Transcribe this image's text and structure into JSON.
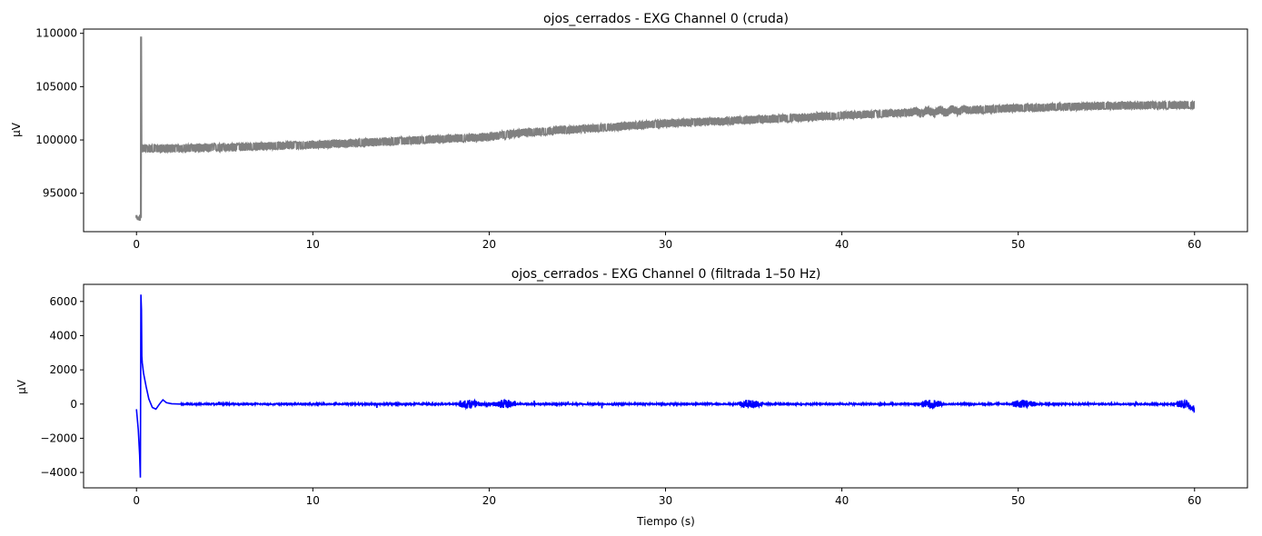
{
  "chart_data": [
    {
      "type": "line",
      "title": "ojos_cerrados -  EXG Channel 0 (cruda)",
      "xlabel": "",
      "ylabel": "µV",
      "xlim": [
        -3,
        63
      ],
      "ylim": [
        91400,
        110400
      ],
      "x_ticks": [
        0,
        10,
        20,
        30,
        40,
        50,
        60
      ],
      "x_tick_labels": [
        "0",
        "10",
        "20",
        "30",
        "40",
        "50",
        "60"
      ],
      "y_ticks": [
        95000,
        100000,
        105000,
        110000
      ],
      "y_tick_labels": [
        "95000",
        "100000",
        "105000",
        "110000"
      ],
      "grid": false,
      "series_color": "#808080",
      "band_halfwidth": 380,
      "spike": {
        "x_start": 0.0,
        "x_end": 0.28,
        "y_low": 92700,
        "y_high": 109700
      },
      "trend": {
        "x": [
          0.3,
          2,
          5,
          10,
          15,
          20,
          22,
          25,
          30,
          35,
          40,
          45,
          50,
          55,
          60
        ],
        "y": [
          99200,
          99200,
          99300,
          99550,
          99900,
          100300,
          100700,
          101000,
          101550,
          101900,
          102300,
          102650,
          103000,
          103200,
          103300
        ]
      }
    },
    {
      "type": "line",
      "title": "ojos_cerrados -  EXG Channel 0 (filtrada 1–50 Hz)",
      "xlabel": "Tiempo (s)",
      "ylabel": "µV",
      "xlim": [
        -3,
        63
      ],
      "ylim": [
        -4900,
        7000
      ],
      "x_ticks": [
        0,
        10,
        20,
        30,
        40,
        50,
        60
      ],
      "x_tick_labels": [
        "0",
        "10",
        "20",
        "30",
        "40",
        "50",
        "60"
      ],
      "y_ticks": [
        -4000,
        -2000,
        0,
        2000,
        4000,
        6000
      ],
      "y_tick_labels": [
        "−4000",
        "−2000",
        "0",
        "2000",
        "4000",
        "6000"
      ],
      "grid": false,
      "series_color": "#0000ff",
      "transient": {
        "x": [
          0,
          0.1,
          0.18,
          0.22,
          0.25,
          0.28,
          0.3,
          0.33,
          0.4,
          0.55,
          0.7,
          0.9,
          1.1,
          1.3,
          1.5,
          1.7,
          2.0,
          2.5
        ],
        "y": [
          -300,
          -1500,
          -3000,
          -4300,
          6400,
          5500,
          2800,
          2400,
          1800,
          1000,
          300,
          -200,
          -300,
          0,
          250,
          80,
          20,
          0
        ]
      },
      "burst_windows": [
        [
          18.3,
          21.5
        ],
        [
          34.2,
          35.6
        ],
        [
          44.5,
          45.8
        ],
        [
          49.7,
          51.2
        ],
        [
          59.0,
          60.0
        ]
      ]
    }
  ]
}
